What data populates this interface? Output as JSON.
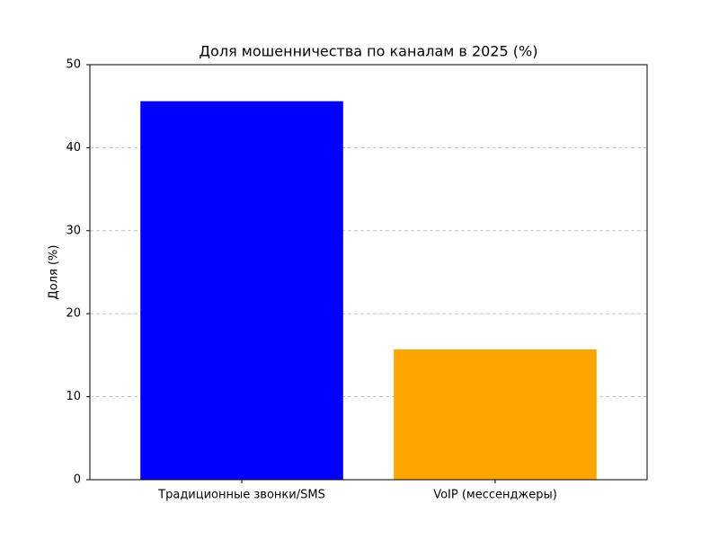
{
  "chart_data": {
    "type": "bar",
    "title": "Доля мошенничества по каналам в 2025 (%)",
    "y_label": "Доля (%)",
    "categories": [
      "Традиционные звонки/SMS",
      "VoIP (мессенджеры)"
    ],
    "values": [
      45.6,
      15.7
    ],
    "colors": [
      "#0000ff",
      "#ffa500"
    ],
    "ylim": [
      0,
      50
    ],
    "yticks": [
      0,
      10,
      20,
      30,
      40,
      50
    ],
    "grid": true
  }
}
